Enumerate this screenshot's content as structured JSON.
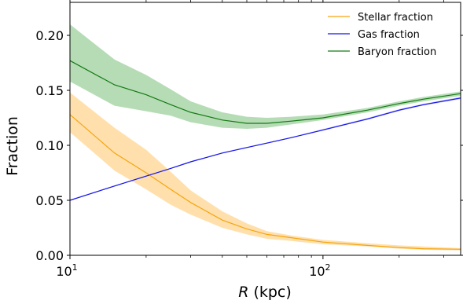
{
  "chart_data": {
    "type": "line",
    "xscale": "log",
    "xlim": [
      10,
      350
    ],
    "ylim": [
      0.0,
      0.23
    ],
    "xlabel": {
      "italic": "R",
      "rest": " (kpc)"
    },
    "ylabel": "Fraction",
    "grid": false,
    "legend_placement": "top-right",
    "x_ticks": [
      {
        "value": 10,
        "base": "10",
        "exp": "1"
      },
      {
        "value": 100,
        "base": "10",
        "exp": "2"
      }
    ],
    "y_ticks": [
      {
        "value": 0.0,
        "label": "0.00"
      },
      {
        "value": 0.05,
        "label": "0.05"
      },
      {
        "value": 0.1,
        "label": "0.10"
      },
      {
        "value": 0.15,
        "label": "0.15"
      },
      {
        "value": 0.2,
        "label": "0.20"
      }
    ],
    "series": [
      {
        "name": "Stellar fraction",
        "color": "#f5a40d",
        "band_color": "#ffd591",
        "x": [
          10,
          15,
          20,
          25,
          30,
          40,
          50,
          60,
          75,
          100,
          150,
          200,
          250,
          350
        ],
        "y": [
          0.128,
          0.093,
          0.075,
          0.06,
          0.048,
          0.032,
          0.024,
          0.019,
          0.016,
          0.012,
          0.009,
          0.007,
          0.006,
          0.0055
        ],
        "lower": [
          0.112,
          0.077,
          0.06,
          0.046,
          0.037,
          0.025,
          0.019,
          0.015,
          0.013,
          0.01,
          0.008,
          0.006,
          0.005,
          0.0045
        ],
        "upper": [
          0.148,
          0.116,
          0.096,
          0.076,
          0.059,
          0.04,
          0.029,
          0.022,
          0.018,
          0.014,
          0.011,
          0.009,
          0.008,
          0.0065
        ]
      },
      {
        "name": "Gas fraction",
        "color": "#1616e6",
        "band_color": "#b3b3f5",
        "x": [
          10,
          15,
          20,
          25,
          30,
          40,
          50,
          60,
          75,
          100,
          150,
          200,
          250,
          350
        ],
        "y": [
          0.05,
          0.063,
          0.072,
          0.079,
          0.085,
          0.093,
          0.098,
          0.102,
          0.107,
          0.114,
          0.124,
          0.132,
          0.137,
          0.143
        ],
        "lower": [
          0.0495,
          0.0625,
          0.0715,
          0.0785,
          0.0845,
          0.0925,
          0.0975,
          0.1015,
          0.1065,
          0.1133,
          0.1232,
          0.1312,
          0.1362,
          0.142
        ],
        "upper": [
          0.0505,
          0.0635,
          0.0725,
          0.0795,
          0.0855,
          0.0935,
          0.0985,
          0.1025,
          0.1075,
          0.1147,
          0.1248,
          0.1328,
          0.1378,
          0.144
        ]
      },
      {
        "name": "Baryon fraction",
        "color": "#137a13",
        "band_color": "#9dd09d",
        "x": [
          10,
          15,
          20,
          25,
          30,
          40,
          50,
          60,
          75,
          100,
          150,
          200,
          250,
          350
        ],
        "y": [
          0.177,
          0.155,
          0.146,
          0.137,
          0.13,
          0.123,
          0.12,
          0.12,
          0.122,
          0.125,
          0.132,
          0.138,
          0.142,
          0.147
        ],
        "lower": [
          0.158,
          0.136,
          0.131,
          0.127,
          0.121,
          0.116,
          0.115,
          0.116,
          0.119,
          0.123,
          0.13,
          0.136,
          0.14,
          0.145
        ],
        "upper": [
          0.21,
          0.178,
          0.164,
          0.151,
          0.14,
          0.13,
          0.126,
          0.125,
          0.126,
          0.128,
          0.134,
          0.14,
          0.144,
          0.149
        ]
      }
    ]
  }
}
